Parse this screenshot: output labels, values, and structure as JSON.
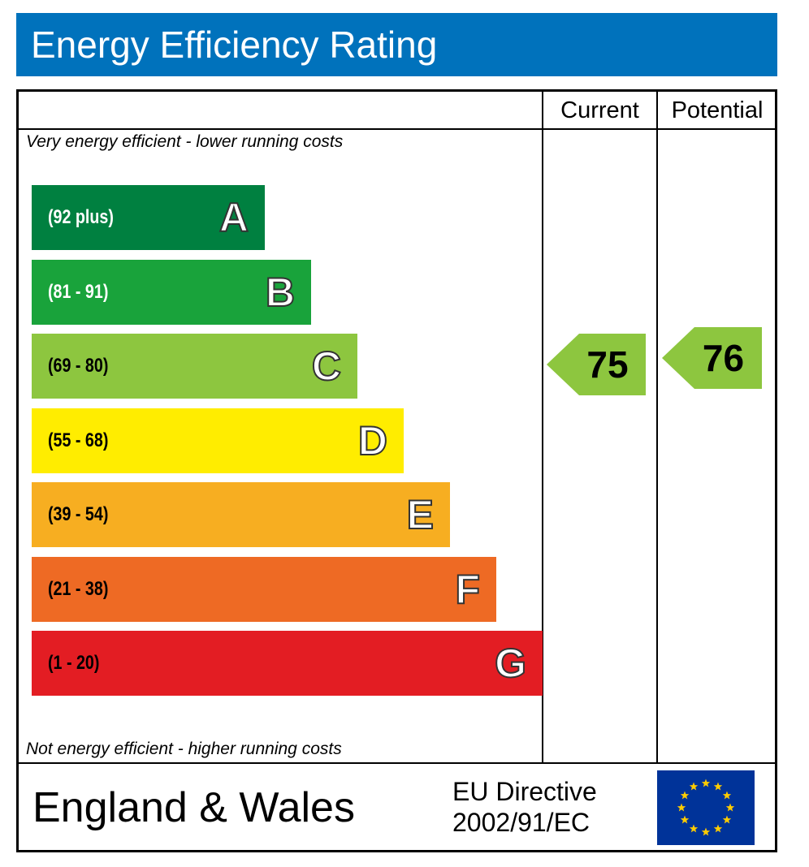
{
  "title": "Energy Efficiency Rating",
  "columns": {
    "current": "Current",
    "potential": "Potential"
  },
  "top_note": "Very energy efficient - lower running costs",
  "bottom_note": "Not energy efficient - higher running costs",
  "footer": {
    "country": "England & Wales",
    "directive_line1": "EU Directive",
    "directive_line2": "2002/91/EC",
    "flag_icon": "eu-flag-icon"
  },
  "chart_data": {
    "type": "bar",
    "categories": [
      "A",
      "B",
      "C",
      "D",
      "E",
      "F",
      "G"
    ],
    "bands": [
      {
        "letter": "A",
        "range": "(92 plus)",
        "color": "#008040",
        "range_color": "#ffffff"
      },
      {
        "letter": "B",
        "range": "(81 - 91)",
        "color": "#19a33b",
        "range_color": "#ffffff"
      },
      {
        "letter": "C",
        "range": "(69 - 80)",
        "color": "#8dc63f",
        "range_color": "#000000"
      },
      {
        "letter": "D",
        "range": "(55 - 68)",
        "color": "#ffed00",
        "range_color": "#000000"
      },
      {
        "letter": "E",
        "range": "(39 - 54)",
        "color": "#f7ae21",
        "range_color": "#000000"
      },
      {
        "letter": "F",
        "range": "(21 - 38)",
        "color": "#ee6a24",
        "range_color": "#000000"
      },
      {
        "letter": "G",
        "range": "(1 - 20)",
        "color": "#e31d23",
        "range_color": "#000000"
      }
    ],
    "current": {
      "value": 75,
      "band": "C",
      "color": "#8dc63f"
    },
    "potential": {
      "value": 76,
      "band": "C",
      "color": "#8dc63f"
    }
  }
}
